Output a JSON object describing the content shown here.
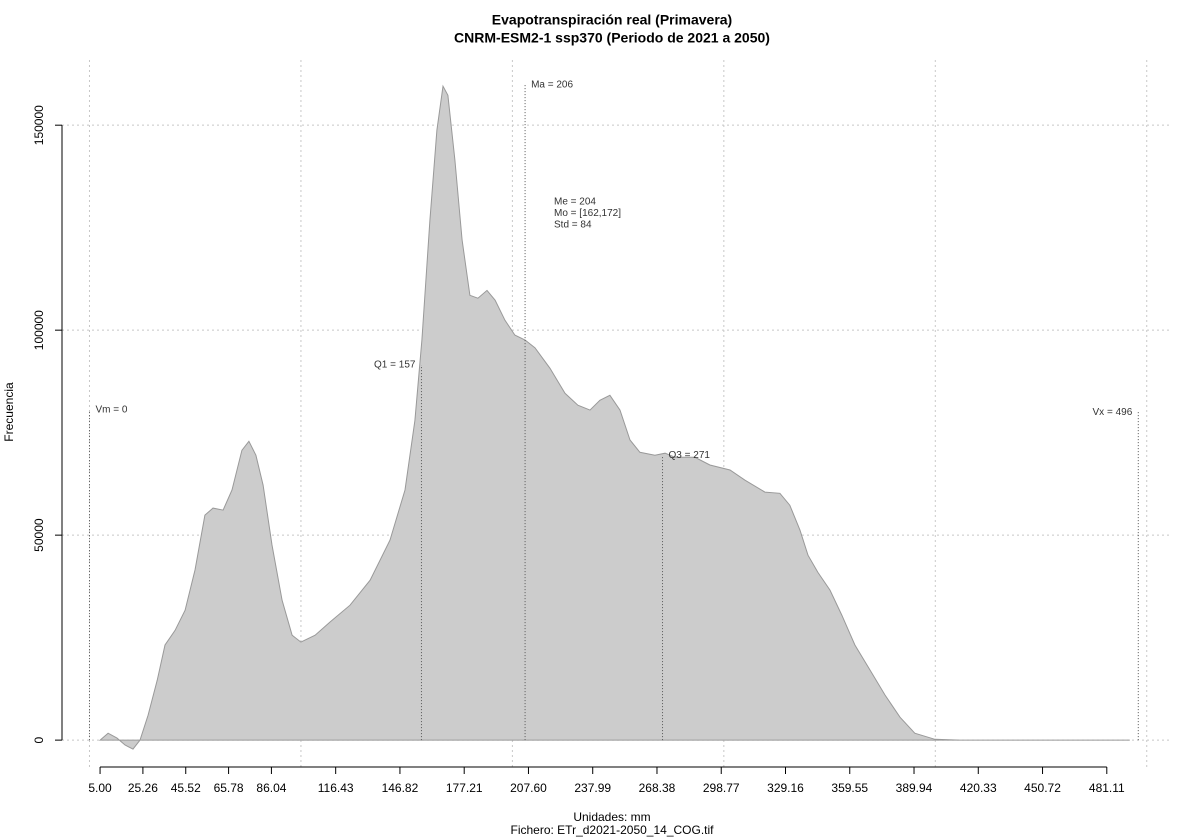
{
  "chart_data": {
    "type": "density",
    "title": "Evapotranspiración real (Primavera)",
    "subtitle": "CNRM-ESM2-1 ssp370 (Periodo de 2021 a 2050)",
    "xlabel": "Unidades: mm",
    "footer": "Fichero: ETr_d2021-2050_14_COG.tif",
    "ylabel": "Frecuencia",
    "color": "#cccccc",
    "line_color": "#999999",
    "x": [
      5.0,
      8.8,
      13.0,
      16.8,
      20.6,
      23.9,
      27.7,
      32.0,
      35.7,
      40.5,
      45.2,
      49.9,
      54.6,
      58.4,
      63.2,
      67.4,
      72.1,
      75.4,
      78.7,
      82.1,
      86.3,
      91.1,
      95.8,
      100.0,
      106.7,
      113.7,
      123.2,
      132.7,
      142.1,
      149.2,
      153.9,
      157.2,
      161.0,
      164.3,
      167.2,
      169.5,
      172.8,
      176.2,
      179.9,
      183.7,
      188.0,
      191.8,
      196.5,
      201.2,
      206.0,
      210.7,
      217.8,
      224.9,
      231.0,
      236.7,
      241.4,
      246.1,
      250.9,
      255.6,
      260.3,
      267.4,
      272.2,
      276.9,
      286.3,
      293.4,
      302.9,
      310.0,
      319.4,
      326.5,
      331.2,
      336.0,
      339.8,
      344.5,
      350.2,
      355.8,
      362.0,
      369.1,
      376.2,
      383.3,
      390.3,
      399.8,
      411.6,
      492.0
    ],
    "values": [
      0,
      1700,
      500,
      -1200,
      -2200,
      0,
      6100,
      14600,
      23200,
      26800,
      31700,
      41500,
      54900,
      56600,
      56100,
      61000,
      70700,
      72900,
      69500,
      62200,
      47600,
      34100,
      25600,
      23900,
      25600,
      28800,
      32900,
      39000,
      48800,
      61000,
      78000,
      97600,
      126800,
      148800,
      159500,
      157300,
      141500,
      122000,
      108500,
      107800,
      109700,
      107300,
      102400,
      98800,
      97600,
      95700,
      90700,
      84600,
      81700,
      80500,
      82900,
      84100,
      80500,
      73200,
      70200,
      69500,
      70000,
      69000,
      69000,
      67100,
      65900,
      63400,
      60500,
      60200,
      57300,
      51200,
      45100,
      40900,
      36600,
      30500,
      23200,
      17100,
      11000,
      5600,
      1700,
      200,
      0,
      0
    ],
    "xlim": [
      -13,
      511
    ],
    "ylim": [
      -6800,
      165900
    ],
    "xticks": [
      {
        "value": 5.0,
        "label": "5.00"
      },
      25.26,
      45.52,
      65.78,
      86.04,
      116.43,
      146.82,
      177.21,
      {
        "value": 207.6,
        "label": "207.60"
      },
      237.99,
      268.38,
      298.77,
      329.16,
      359.55,
      389.94,
      420.33,
      450.72,
      481.11
    ],
    "yticks": [
      0,
      50000,
      100000,
      150000
    ],
    "xgrid": [
      0,
      100,
      200,
      300,
      400,
      500
    ],
    "grid": true,
    "markers": [
      {
        "label": "Vm = 0",
        "x": 0,
        "height": 80500,
        "side": "right"
      },
      {
        "label": "Q1 = 157",
        "x": 157,
        "height": 91500,
        "side": "left"
      },
      {
        "label": "Ma = 206",
        "x": 206,
        "height": 159800,
        "side": "right"
      },
      {
        "label": "Q3 = 271",
        "x": 271,
        "height": 69500,
        "side": "right"
      },
      {
        "label": "Vx = 496",
        "x": 496,
        "height": 80000,
        "side": "left"
      }
    ],
    "stats": [
      "Me = 204",
      "Mo = [162,172]",
      "Std = 84"
    ]
  }
}
